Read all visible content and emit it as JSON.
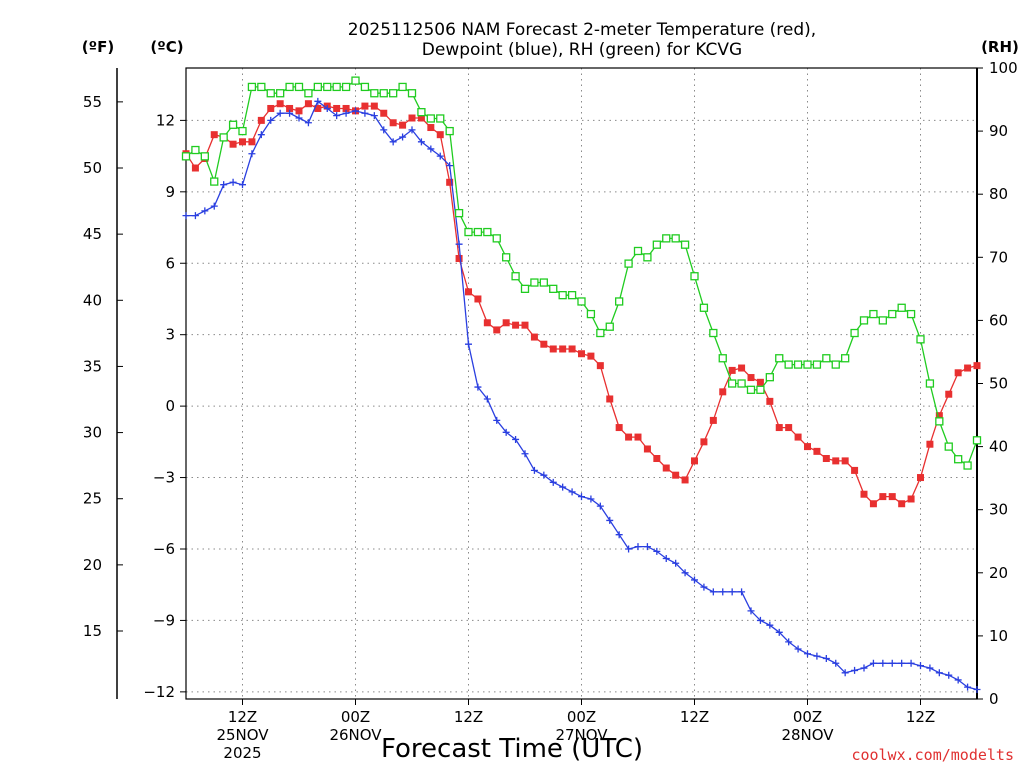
{
  "chart_data": {
    "type": "line",
    "title_line1": "2025112506 NAM Forecast 2-meter Temperature (red),",
    "title_line2": "Dewpoint (blue), RH (green) for KCVG",
    "xlabel": "Forecast Time (UTC)",
    "credit": "coolwx.com/modelts",
    "left_units_f": "(ºF)",
    "left_units_c": "(ºC)",
    "right_units": "(RH)",
    "x_unit": "forecast hour (from 2025-11-25 06Z)",
    "xlim": [
      0,
      84
    ],
    "ylim_c": [
      -12.3,
      14.2
    ],
    "ylim_rh": [
      0,
      100
    ],
    "c_ticks": [
      12,
      9,
      6,
      3,
      0,
      -3,
      -6,
      -9,
      -12
    ],
    "c_tick_labels": [
      "12",
      "9",
      "6",
      "3",
      "0",
      "−3",
      "−6",
      "−9",
      "−12"
    ],
    "f_ticks": [
      55,
      50,
      45,
      40,
      35,
      30,
      25,
      20,
      15
    ],
    "f_tick_labels": [
      "55",
      "50",
      "45",
      "40",
      "35",
      "30",
      "25",
      "20",
      "15"
    ],
    "rh_ticks": [
      100,
      90,
      80,
      70,
      60,
      50,
      40,
      30,
      20,
      10,
      0
    ],
    "rh_tick_labels": [
      "100",
      "90",
      "80",
      "70",
      "60",
      "50",
      "40",
      "30",
      "20",
      "10",
      "0"
    ],
    "x_ticks": [
      {
        "hour": 6,
        "labels": [
          "12Z",
          "25NOV",
          "2025"
        ]
      },
      {
        "hour": 18,
        "labels": [
          "00Z",
          "26NOV"
        ]
      },
      {
        "hour": 30,
        "labels": [
          "12Z"
        ]
      },
      {
        "hour": 42,
        "labels": [
          "00Z",
          "27NOV"
        ]
      },
      {
        "hour": 54,
        "labels": [
          "12Z"
        ]
      },
      {
        "hour": 66,
        "labels": [
          "00Z",
          "28NOV"
        ]
      },
      {
        "hour": 78,
        "labels": [
          "12Z"
        ]
      }
    ],
    "series": [
      {
        "name": "Temperature",
        "unit": "C",
        "color": "#e83030",
        "marker": "filled-square",
        "x": [
          0,
          1,
          2,
          3,
          4,
          5,
          6,
          7,
          8,
          9,
          10,
          11,
          12,
          13,
          14,
          15,
          16,
          17,
          18,
          19,
          20,
          21,
          22,
          23,
          24,
          25,
          26,
          27,
          28,
          29,
          30,
          31,
          32,
          33,
          34,
          35,
          36,
          37,
          38,
          39,
          40,
          41,
          42,
          43,
          44,
          45,
          46,
          47,
          48,
          49,
          50,
          51,
          52,
          53,
          54,
          55,
          56,
          57,
          58,
          59,
          60,
          61,
          62,
          63,
          64,
          65,
          66,
          67,
          68,
          69,
          70,
          71,
          72,
          73,
          74,
          75,
          76,
          77,
          78,
          79,
          80,
          81,
          82,
          83,
          84
        ],
        "values": [
          10.6,
          10.0,
          10.4,
          11.4,
          11.3,
          11.0,
          11.1,
          11.1,
          12.0,
          12.5,
          12.7,
          12.5,
          12.4,
          12.7,
          12.5,
          12.6,
          12.5,
          12.5,
          12.4,
          12.6,
          12.6,
          12.3,
          11.9,
          11.8,
          12.1,
          12.1,
          11.7,
          11.4,
          9.4,
          6.2,
          4.8,
          4.5,
          3.5,
          3.2,
          3.5,
          3.4,
          3.4,
          2.9,
          2.6,
          2.4,
          2.4,
          2.4,
          2.2,
          2.1,
          1.7,
          0.3,
          -0.9,
          -1.3,
          -1.3,
          -1.8,
          -2.2,
          -2.6,
          -2.9,
          -3.1,
          -2.3,
          -1.5,
          -0.6,
          0.6,
          1.5,
          1.6,
          1.2,
          1.0,
          0.2,
          -0.9,
          -0.9,
          -1.3,
          -1.7,
          -1.9,
          -2.2,
          -2.3,
          -2.3,
          -2.7,
          -3.7,
          -4.1,
          -3.8,
          -3.8,
          -4.1,
          -3.9,
          -3.0,
          -1.6,
          -0.4,
          0.5,
          1.4,
          1.6,
          1.7
        ]
      },
      {
        "name": "Dewpoint",
        "unit": "C",
        "color": "#2a3fe0",
        "marker": "plus",
        "x": [
          0,
          1,
          2,
          3,
          4,
          5,
          6,
          7,
          8,
          9,
          10,
          11,
          12,
          13,
          14,
          15,
          16,
          17,
          18,
          19,
          20,
          21,
          22,
          23,
          24,
          25,
          26,
          27,
          28,
          29,
          30,
          31,
          32,
          33,
          34,
          35,
          36,
          37,
          38,
          39,
          40,
          41,
          42,
          43,
          44,
          45,
          46,
          47,
          48,
          49,
          50,
          51,
          52,
          53,
          54,
          55,
          56,
          57,
          58,
          59,
          60,
          61,
          62,
          63,
          64,
          65,
          66,
          67,
          68,
          69,
          70,
          71,
          72,
          73,
          74,
          75,
          76,
          77,
          78,
          79,
          80,
          81,
          82,
          83,
          84
        ],
        "values": [
          8.0,
          8.0,
          8.2,
          8.4,
          9.3,
          9.4,
          9.3,
          10.6,
          11.4,
          12.0,
          12.3,
          12.3,
          12.1,
          11.9,
          12.8,
          12.5,
          12.2,
          12.3,
          12.4,
          12.3,
          12.2,
          11.6,
          11.1,
          11.3,
          11.6,
          11.1,
          10.8,
          10.5,
          10.1,
          6.8,
          2.6,
          0.8,
          0.3,
          -0.6,
          -1.1,
          -1.4,
          -2.0,
          -2.7,
          -2.9,
          -3.2,
          -3.4,
          -3.6,
          -3.8,
          -3.9,
          -4.2,
          -4.8,
          -5.4,
          -6.0,
          -5.9,
          -5.9,
          -6.1,
          -6.4,
          -6.6,
          -7.0,
          -7.3,
          -7.6,
          -7.8,
          -7.8,
          -7.8,
          -7.8,
          -8.6,
          -9.0,
          -9.2,
          -9.5,
          -9.9,
          -10.2,
          -10.4,
          -10.5,
          -10.6,
          -10.8,
          -11.2,
          -11.1,
          -11.0,
          -10.8,
          -10.8,
          -10.8,
          -10.8,
          -10.8,
          -10.9,
          -11.0,
          -11.2,
          -11.3,
          -11.5,
          -11.8,
          -11.9
        ]
      },
      {
        "name": "RH",
        "unit": "%",
        "color": "#20cc20",
        "marker": "open-square",
        "x": [
          0,
          1,
          2,
          3,
          4,
          5,
          6,
          7,
          8,
          9,
          10,
          11,
          12,
          13,
          14,
          15,
          16,
          17,
          18,
          19,
          20,
          21,
          22,
          23,
          24,
          25,
          26,
          27,
          28,
          29,
          30,
          31,
          32,
          33,
          34,
          35,
          36,
          37,
          38,
          39,
          40,
          41,
          42,
          43,
          44,
          45,
          46,
          47,
          48,
          49,
          50,
          51,
          52,
          53,
          54,
          55,
          56,
          57,
          58,
          59,
          60,
          61,
          62,
          63,
          64,
          65,
          66,
          67,
          68,
          69,
          70,
          71,
          72,
          73,
          74,
          75,
          76,
          77,
          78,
          79,
          80,
          81,
          82,
          83,
          84
        ],
        "values": [
          86,
          87,
          86,
          82,
          89,
          91,
          90,
          97,
          97,
          96,
          96,
          97,
          97,
          96,
          97,
          97,
          97,
          97,
          98,
          97,
          96,
          96,
          96,
          97,
          96,
          93,
          92,
          92,
          90,
          77,
          74,
          74,
          74,
          73,
          70,
          67,
          65,
          66,
          66,
          65,
          64,
          64,
          63,
          61,
          58,
          59,
          63,
          69,
          71,
          70,
          72,
          73,
          73,
          72,
          67,
          62,
          58,
          54,
          50,
          50,
          49,
          49,
          51,
          54,
          53,
          53,
          53,
          53,
          54,
          53,
          54,
          58,
          60,
          61,
          60,
          61,
          62,
          61,
          57,
          50,
          44,
          40,
          38,
          37,
          41
        ]
      }
    ]
  }
}
